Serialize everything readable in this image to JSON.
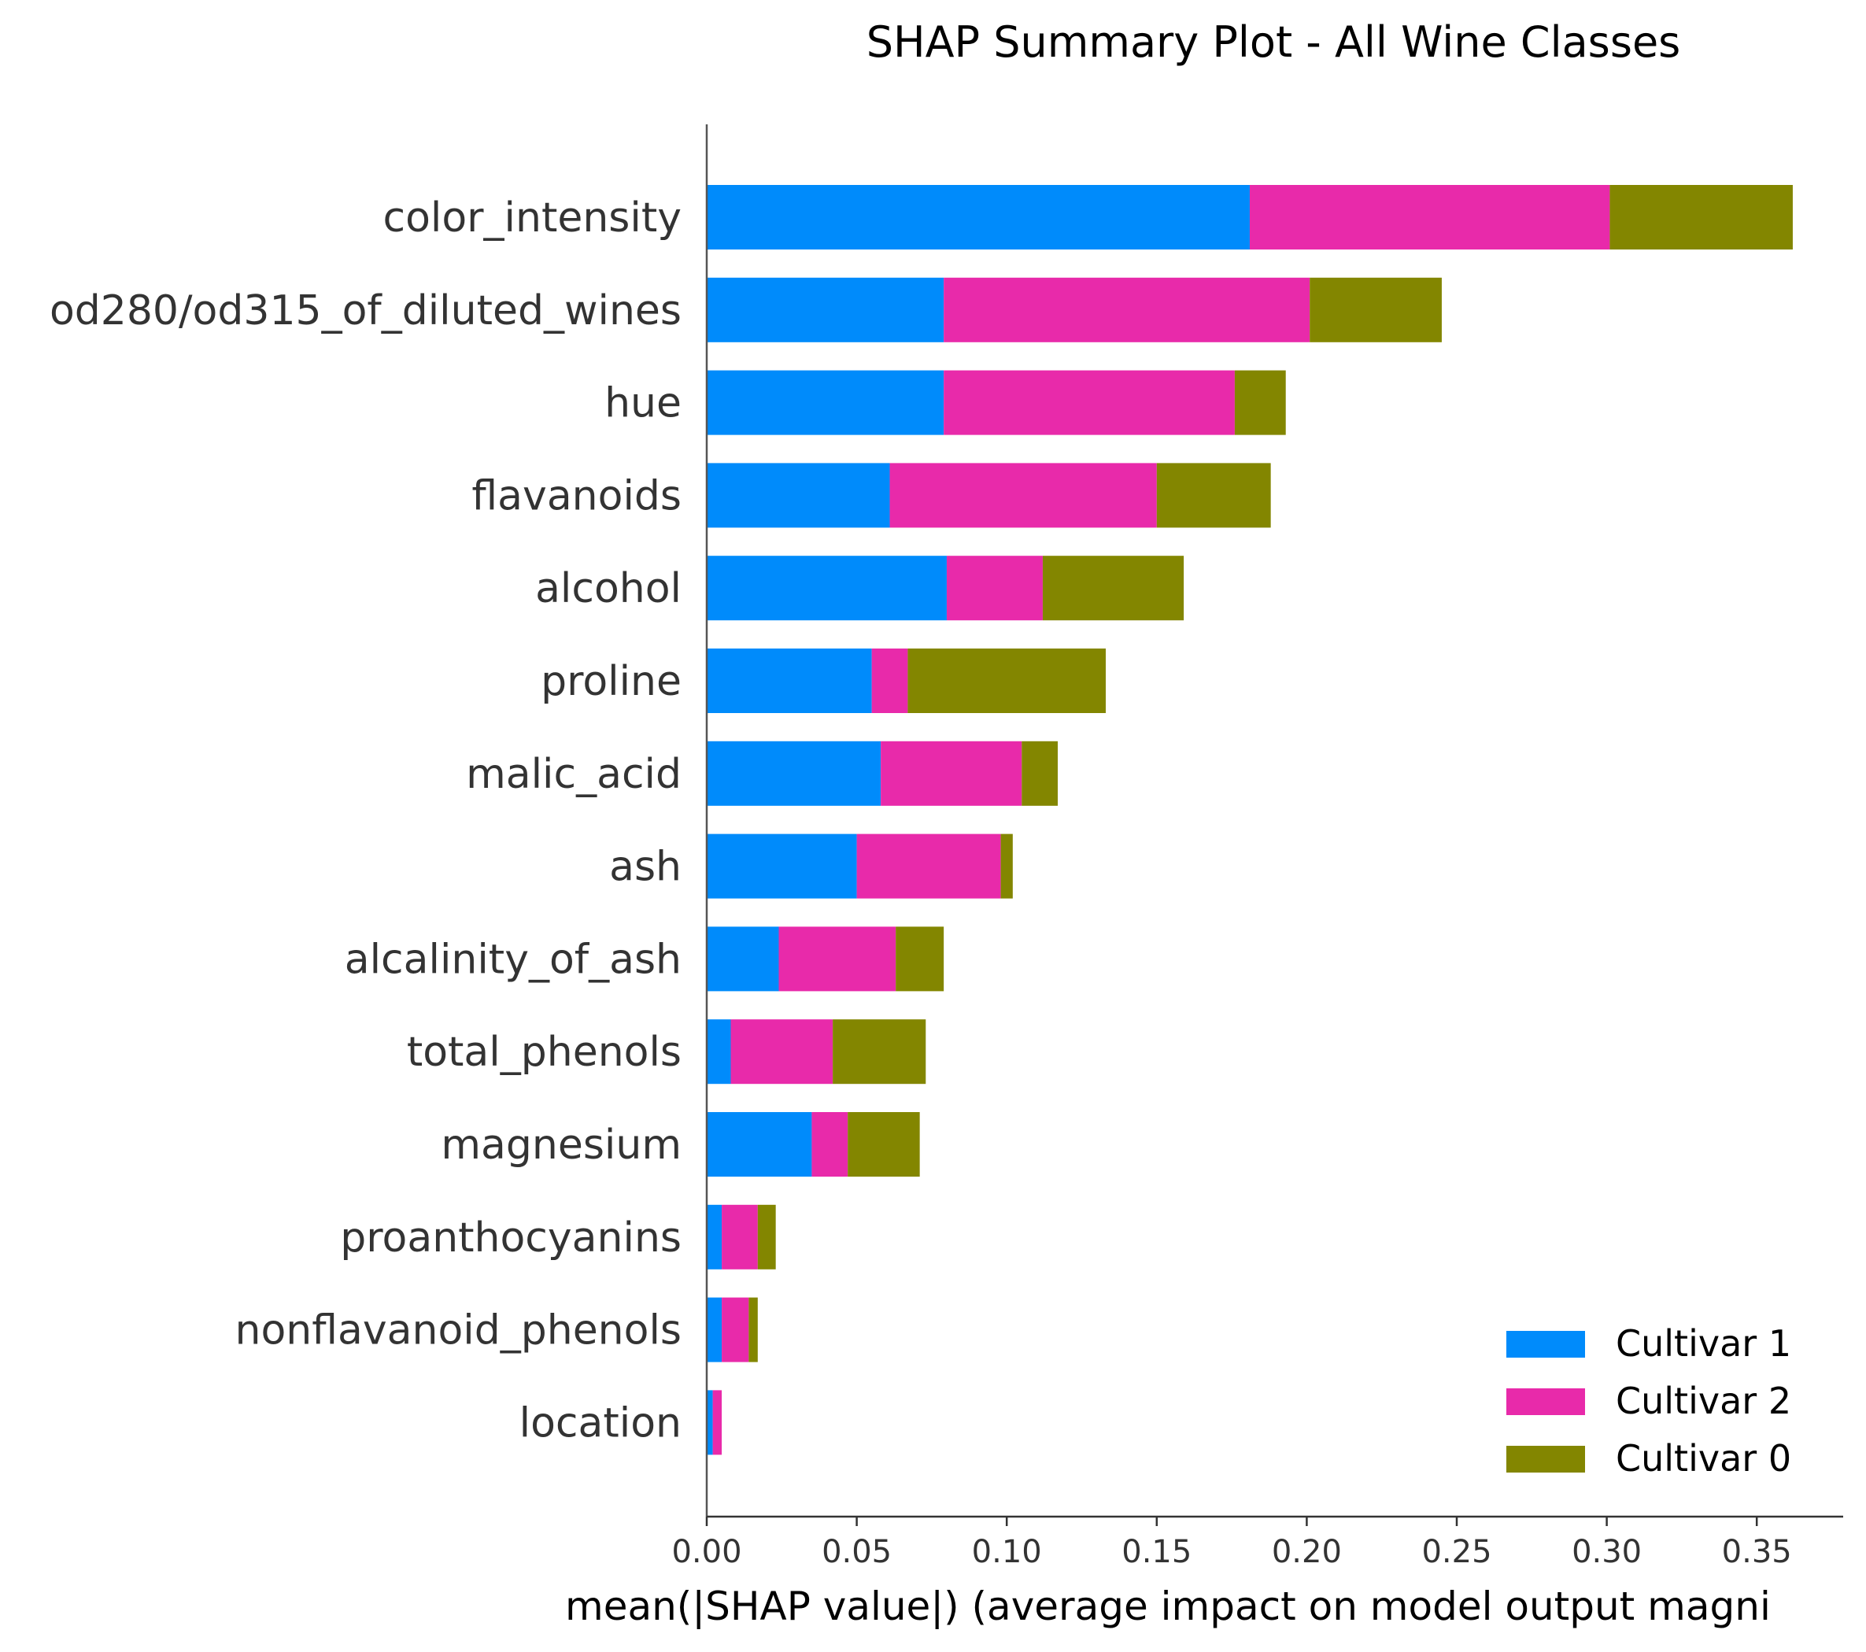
{
  "chart_data": {
    "type": "bar",
    "orientation": "horizontal",
    "stacked": true,
    "title": "SHAP Summary Plot - All Wine Classes",
    "xlabel": "mean(|SHAP value|) (average impact on model output magni",
    "ylabel": "",
    "xlim": [
      0,
      0.38
    ],
    "xticks": [
      "0.00",
      "0.05",
      "0.10",
      "0.15",
      "0.20",
      "0.25",
      "0.30",
      "0.35"
    ],
    "categories": [
      "color_intensity",
      "od280/od315_of_diluted_wines",
      "hue",
      "flavanoids",
      "alcohol",
      "proline",
      "malic_acid",
      "ash",
      "alcalinity_of_ash",
      "total_phenols",
      "magnesium",
      "proanthocyanins",
      "nonflavanoid_phenols",
      "location"
    ],
    "series": [
      {
        "name": "Cultivar 1",
        "color": "#008bfb",
        "values": [
          0.181,
          0.079,
          0.079,
          0.061,
          0.08,
          0.055,
          0.058,
          0.05,
          0.024,
          0.008,
          0.035,
          0.005,
          0.005,
          0.002
        ]
      },
      {
        "name": "Cultivar 2",
        "color": "#e82aaa",
        "values": [
          0.12,
          0.122,
          0.097,
          0.089,
          0.032,
          0.012,
          0.047,
          0.048,
          0.039,
          0.034,
          0.012,
          0.012,
          0.009,
          0.003
        ]
      },
      {
        "name": "Cultivar 0",
        "color": "#838600",
        "values": [
          0.061,
          0.044,
          0.017,
          0.038,
          0.047,
          0.066,
          0.012,
          0.004,
          0.016,
          0.031,
          0.024,
          0.006,
          0.003,
          0.0
        ]
      }
    ],
    "legend": {
      "position": "bottom-right"
    },
    "grid": false
  }
}
